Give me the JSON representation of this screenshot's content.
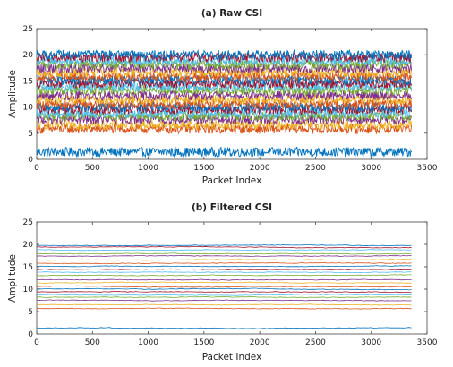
{
  "chart_data": [
    {
      "type": "line",
      "title": "(a) Raw CSI",
      "xlabel": "Packet Index",
      "ylabel": "Amplitude",
      "xlim": [
        0,
        3500
      ],
      "ylim": [
        0,
        25
      ],
      "xticks": [
        "0",
        "500",
        "1000",
        "1500",
        "2000",
        "2500",
        "3000",
        "3500"
      ],
      "yticks": [
        "0",
        "5",
        "10",
        "15",
        "20",
        "25"
      ],
      "grid": false,
      "x_range": [
        1,
        3360
      ],
      "noise_amplitude": 0.9,
      "series_mean_levels": [
        1.4,
        5.8,
        6.6,
        7.6,
        8.3,
        8.8,
        9.5,
        10.0,
        10.6,
        11.5,
        12.2,
        13.2,
        13.9,
        14.5,
        15.2,
        15.8,
        16.6,
        17.4,
        18.1,
        18.8,
        19.5,
        20.0
      ]
    },
    {
      "type": "line",
      "title": "(b) Filtered CSI",
      "xlabel": "Packet Index",
      "ylabel": "Amplitude",
      "xlim": [
        0,
        3500
      ],
      "ylim": [
        0,
        25
      ],
      "xticks": [
        "0",
        "500",
        "1000",
        "1500",
        "2000",
        "2500",
        "3000",
        "3500"
      ],
      "yticks": [
        "0",
        "5",
        "10",
        "15",
        "20",
        "25"
      ],
      "grid": false,
      "x_range": [
        1,
        3360
      ],
      "noise_amplitude": 0.12,
      "series_mean_levels": [
        1.3,
        5.7,
        6.5,
        7.5,
        8.2,
        8.7,
        9.4,
        10.0,
        10.6,
        11.4,
        12.1,
        13.1,
        13.8,
        14.4,
        15.1,
        15.8,
        16.5,
        17.4,
        18.0,
        18.8,
        19.4,
        19.8
      ]
    }
  ],
  "colors": [
    "#0072BD",
    "#D95319",
    "#EDB120",
    "#7E2F8E",
    "#77AC30",
    "#4DBEEE",
    "#A2142F"
  ]
}
